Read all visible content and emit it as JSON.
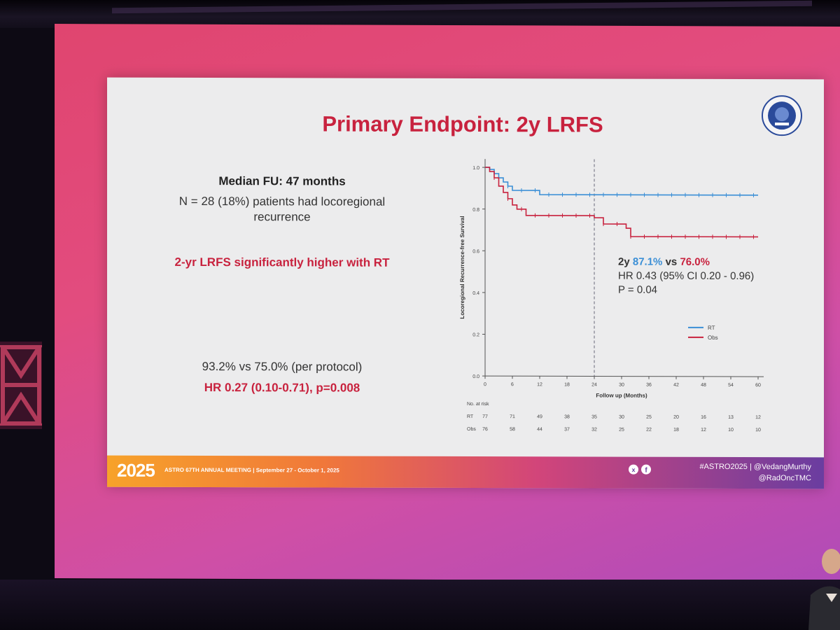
{
  "slide": {
    "title": "Primary Endpoint: 2y LRFS",
    "median_fu": "Median FU: 47 months",
    "recurrence": "N = 28 (18%) patients had locoregional recurrence",
    "significance": "2-yr LRFS significantly higher with RT",
    "per_protocol": "93.2% vs 75.0% (per protocol)",
    "per_protocol_hr": "HR 0.27 (0.10-0.71), p=0.008",
    "stats": {
      "prefix": "2y ",
      "rt_value": "87.1%",
      "vs": " vs ",
      "obs_value": "76.0%",
      "hr": "HR 0.43 (95% CI 0.20 - 0.96)",
      "p": "P = 0.04"
    }
  },
  "chart_data": {
    "type": "line",
    "title": "",
    "xlabel": "Follow up (Months)",
    "ylabel": "Locoregional Recurrence-free Survival",
    "xlim": [
      0,
      60
    ],
    "ylim": [
      0,
      1.0
    ],
    "x_ticks": [
      0,
      6,
      12,
      18,
      24,
      30,
      36,
      42,
      48,
      54,
      60
    ],
    "y_ticks": [
      "0.0",
      "0.2",
      "0.4",
      "0.6",
      "0.8",
      "1.0"
    ],
    "reference_line_x": 24,
    "legend": [
      "RT",
      "Obs"
    ],
    "series": [
      {
        "name": "RT",
        "color": "#3b8fd6",
        "steps": [
          [
            0,
            1.0
          ],
          [
            1,
            0.99
          ],
          [
            2,
            0.97
          ],
          [
            3,
            0.95
          ],
          [
            4,
            0.93
          ],
          [
            5,
            0.91
          ],
          [
            6,
            0.89
          ],
          [
            12,
            0.87
          ],
          [
            60,
            0.87
          ]
        ]
      },
      {
        "name": "Obs",
        "color": "#c8223e",
        "steps": [
          [
            0,
            1.0
          ],
          [
            1,
            0.98
          ],
          [
            2,
            0.95
          ],
          [
            3,
            0.91
          ],
          [
            4,
            0.88
          ],
          [
            5,
            0.85
          ],
          [
            6,
            0.82
          ],
          [
            7,
            0.8
          ],
          [
            9,
            0.77
          ],
          [
            24,
            0.76
          ],
          [
            26,
            0.73
          ],
          [
            31,
            0.71
          ],
          [
            32,
            0.67
          ],
          [
            60,
            0.67
          ]
        ]
      }
    ],
    "risk_table": {
      "header": "No. at risk",
      "rows": [
        {
          "label": "RT",
          "values": [
            "77",
            "71",
            "49",
            "38",
            "35",
            "30",
            "25",
            "20",
            "16",
            "13",
            "12"
          ]
        },
        {
          "label": "Obs",
          "values": [
            "76",
            "58",
            "44",
            "37",
            "32",
            "25",
            "22",
            "18",
            "12",
            "10",
            "10"
          ]
        }
      ]
    }
  },
  "footer": {
    "year": "2025",
    "meeting": "ASTRO 67TH ANNUAL MEETING | September 27 - October 1, 2025",
    "hashtag": "#ASTRO2025 | @VedangMurthy",
    "handle2": "@RadOncTMC"
  },
  "colors": {
    "accent_red": "#c8223e",
    "rt_blue": "#3b8fd6"
  }
}
